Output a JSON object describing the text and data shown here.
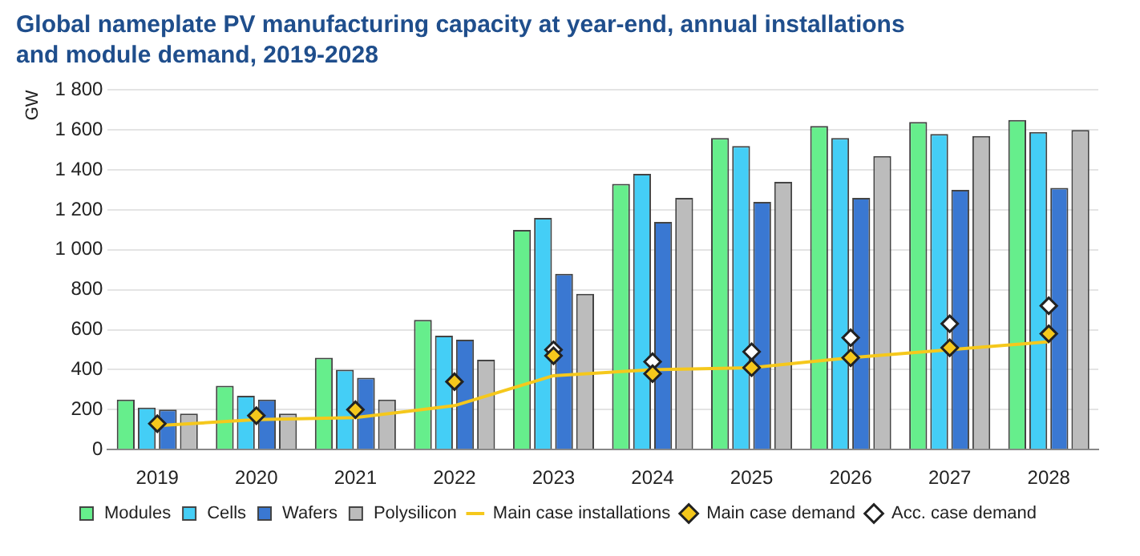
{
  "chart_data": {
    "type": "bar",
    "title": "Global nameplate PV manufacturing capacity at year-end, annual installations and module demand, 2019-2028",
    "ylabel": "GW",
    "categories": [
      "2019",
      "2020",
      "2021",
      "2022",
      "2023",
      "2024",
      "2025",
      "2026",
      "2027",
      "2028"
    ],
    "series": [
      {
        "name": "Modules",
        "color": "#66ee8c",
        "values": [
          250,
          320,
          460,
          650,
          1100,
          1330,
          1560,
          1620,
          1640,
          1650
        ]
      },
      {
        "name": "Cells",
        "color": "#44cef6",
        "values": [
          210,
          270,
          400,
          570,
          1160,
          1380,
          1520,
          1560,
          1580,
          1590
        ]
      },
      {
        "name": "Wafers",
        "color": "#3a78d2",
        "values": [
          200,
          250,
          360,
          550,
          880,
          1140,
          1240,
          1260,
          1300,
          1310
        ]
      },
      {
        "name": "Polysilicon",
        "color": "#bcbcbc",
        "values": [
          180,
          180,
          250,
          450,
          780,
          1260,
          1340,
          1470,
          1570,
          1600
        ]
      },
      {
        "name": "Main case installations",
        "type": "line",
        "color": "#f5c81c",
        "marker": "none",
        "line_style": "solid",
        "values": [
          120,
          150,
          160,
          220,
          370,
          400,
          410,
          460,
          500,
          540
        ]
      },
      {
        "name": "Main case demand",
        "type": "scatter",
        "color": "#f5c81c",
        "marker": "diamond",
        "values": [
          130,
          170,
          200,
          340,
          470,
          380,
          410,
          460,
          510,
          580
        ]
      },
      {
        "name": "Acc. case demand",
        "type": "scatter",
        "color": "#ffffff",
        "marker": "diamond",
        "values": [
          null,
          null,
          null,
          null,
          500,
          440,
          490,
          560,
          630,
          720
        ]
      }
    ],
    "ylim": [
      0,
      1800
    ],
    "yticks": [
      0,
      200,
      400,
      600,
      800,
      {
        "value": 1000,
        "label": "1 000"
      },
      {
        "value": 1200,
        "label": "1 200"
      },
      {
        "value": 1400,
        "label": "1 400"
      },
      {
        "value": 1600,
        "label": "1 600"
      },
      {
        "value": 1800,
        "label": "1 800"
      }
    ],
    "grid": "y",
    "legend": "bottom"
  }
}
